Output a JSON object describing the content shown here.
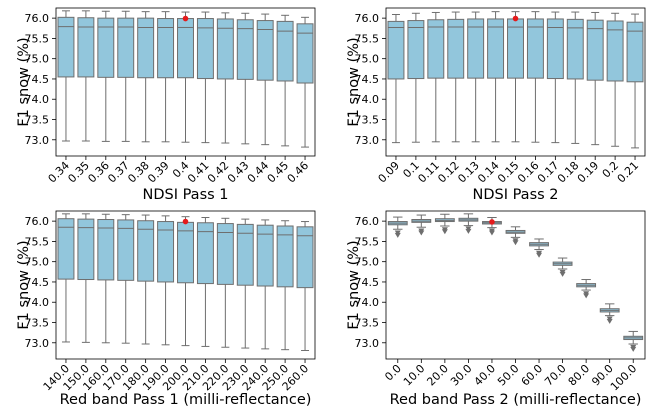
{
  "figure": {
    "background": "#ffffff",
    "box_color": "#92c6dc",
    "edge_color": "#6e6e6e",
    "marker_color": "#e41a1c"
  },
  "chart_data": [
    {
      "type": "box",
      "xlabel": "NDSI Pass 1",
      "ylabel": "F1 snow (%)",
      "ylim": [
        72.6,
        76.25
      ],
      "yticks": [
        "73.0",
        "73.5",
        "74.0",
        "74.5",
        "75.0",
        "75.5",
        "76.0"
      ],
      "categories": [
        "0.34",
        "0.35",
        "0.36",
        "0.37",
        "0.38",
        "0.39",
        "0.4",
        "0.41",
        "0.42",
        "0.43",
        "0.44",
        "0.45",
        "0.46"
      ],
      "series": [
        {
          "boxes": [
            {
              "whislo": 72.97,
              "q1": 74.55,
              "med": 75.79,
              "q3": 76.02,
              "whishi": 76.18
            },
            {
              "whislo": 72.97,
              "q1": 74.55,
              "med": 75.78,
              "q3": 76.01,
              "whishi": 76.18
            },
            {
              "whislo": 72.96,
              "q1": 74.54,
              "med": 75.78,
              "q3": 76.0,
              "whishi": 76.17
            },
            {
              "whislo": 72.96,
              "q1": 74.54,
              "med": 75.78,
              "q3": 76.0,
              "whishi": 76.17
            },
            {
              "whislo": 72.95,
              "q1": 74.53,
              "med": 75.77,
              "q3": 76.0,
              "whishi": 76.16
            },
            {
              "whislo": 72.95,
              "q1": 74.53,
              "med": 75.77,
              "q3": 75.99,
              "whishi": 76.16
            },
            {
              "whislo": 72.94,
              "q1": 74.53,
              "med": 75.77,
              "q3": 75.99,
              "whishi": 76.15
            },
            {
              "whislo": 72.93,
              "q1": 74.51,
              "med": 75.76,
              "q3": 75.99,
              "whishi": 76.15
            },
            {
              "whislo": 72.92,
              "q1": 74.5,
              "med": 75.75,
              "q3": 75.98,
              "whishi": 76.13
            },
            {
              "whislo": 72.9,
              "q1": 74.49,
              "med": 75.74,
              "q3": 75.96,
              "whishi": 76.12
            },
            {
              "whislo": 72.88,
              "q1": 74.47,
              "med": 75.72,
              "q3": 75.94,
              "whishi": 76.1
            },
            {
              "whislo": 72.85,
              "q1": 74.45,
              "med": 75.68,
              "q3": 75.92,
              "whishi": 76.07
            },
            {
              "whislo": 72.82,
              "q1": 74.4,
              "med": 75.63,
              "q3": 75.86,
              "whishi": 76.02
            }
          ]
        }
      ],
      "highlight": {
        "category": "0.4",
        "value": 75.99
      }
    },
    {
      "type": "box",
      "xlabel": "NDSI Pass 2",
      "ylabel": "F1 snow (%)",
      "ylim": [
        72.6,
        76.25
      ],
      "yticks": [
        "73.0",
        "73.5",
        "74.0",
        "74.5",
        "75.0",
        "75.5",
        "76.0"
      ],
      "categories": [
        "0.09",
        "0.1",
        "0.11",
        "0.12",
        "0.13",
        "0.14",
        "0.15",
        "0.16",
        "0.17",
        "0.18",
        "0.19",
        "0.2",
        "0.21"
      ],
      "series": [
        {
          "boxes": [
            {
              "whislo": 72.93,
              "q1": 74.5,
              "med": 75.77,
              "q3": 75.92,
              "whishi": 76.09
            },
            {
              "whislo": 72.94,
              "q1": 74.51,
              "med": 75.77,
              "q3": 75.94,
              "whishi": 76.12
            },
            {
              "whislo": 72.95,
              "q1": 74.52,
              "med": 75.78,
              "q3": 75.96,
              "whishi": 76.14
            },
            {
              "whislo": 72.95,
              "q1": 74.52,
              "med": 75.78,
              "q3": 75.97,
              "whishi": 76.15
            },
            {
              "whislo": 72.95,
              "q1": 74.52,
              "med": 75.78,
              "q3": 75.98,
              "whishi": 76.15
            },
            {
              "whislo": 72.95,
              "q1": 74.52,
              "med": 75.78,
              "q3": 75.98,
              "whishi": 76.16
            },
            {
              "whislo": 72.95,
              "q1": 74.52,
              "med": 75.78,
              "q3": 75.98,
              "whishi": 76.16
            },
            {
              "whislo": 72.94,
              "q1": 74.52,
              "med": 75.78,
              "q3": 75.98,
              "whishi": 76.16
            },
            {
              "whislo": 72.93,
              "q1": 74.51,
              "med": 75.77,
              "q3": 75.98,
              "whishi": 76.15
            },
            {
              "whislo": 72.91,
              "q1": 74.5,
              "med": 75.76,
              "q3": 75.97,
              "whishi": 76.15
            },
            {
              "whislo": 72.88,
              "q1": 74.47,
              "med": 75.74,
              "q3": 75.95,
              "whishi": 76.14
            },
            {
              "whislo": 72.84,
              "q1": 74.45,
              "med": 75.71,
              "q3": 75.93,
              "whishi": 76.12
            },
            {
              "whislo": 72.8,
              "q1": 74.43,
              "med": 75.68,
              "q3": 75.9,
              "whishi": 76.1
            }
          ]
        }
      ],
      "highlight": {
        "category": "0.15",
        "value": 75.99
      }
    },
    {
      "type": "box",
      "xlabel": "Red band Pass 1 (milli-reflectance)",
      "ylabel": "F1 snow (%)",
      "ylim": [
        72.6,
        76.25
      ],
      "yticks": [
        "73.0",
        "73.5",
        "74.0",
        "74.5",
        "75.0",
        "75.5",
        "76.0"
      ],
      "categories": [
        "140.0",
        "150.0",
        "160.0",
        "170.0",
        "180.0",
        "190.0",
        "200.0",
        "210.0",
        "220.0",
        "230.0",
        "240.0",
        "250.0",
        "260.0"
      ],
      "series": [
        {
          "boxes": [
            {
              "whislo": 73.02,
              "q1": 74.57,
              "med": 75.85,
              "q3": 76.06,
              "whishi": 76.18
            },
            {
              "whislo": 73.01,
              "q1": 74.56,
              "med": 75.84,
              "q3": 76.05,
              "whishi": 76.18
            },
            {
              "whislo": 73.0,
              "q1": 74.55,
              "med": 75.83,
              "q3": 76.04,
              "whishi": 76.17
            },
            {
              "whislo": 72.99,
              "q1": 74.54,
              "med": 75.82,
              "q3": 76.03,
              "whishi": 76.16
            },
            {
              "whislo": 72.97,
              "q1": 74.52,
              "med": 75.8,
              "q3": 76.01,
              "whishi": 76.15
            },
            {
              "whislo": 72.95,
              "q1": 74.5,
              "med": 75.78,
              "q3": 75.99,
              "whishi": 76.13
            },
            {
              "whislo": 72.93,
              "q1": 74.48,
              "med": 75.76,
              "q3": 75.97,
              "whishi": 76.11
            },
            {
              "whislo": 72.91,
              "q1": 74.46,
              "med": 75.74,
              "q3": 75.96,
              "whishi": 76.09
            },
            {
              "whislo": 72.89,
              "q1": 74.44,
              "med": 75.72,
              "q3": 75.94,
              "whishi": 76.07
            },
            {
              "whislo": 72.87,
              "q1": 74.42,
              "med": 75.7,
              "q3": 75.92,
              "whishi": 76.05
            },
            {
              "whislo": 72.85,
              "q1": 74.4,
              "med": 75.68,
              "q3": 75.9,
              "whishi": 76.03
            },
            {
              "whislo": 72.83,
              "q1": 74.38,
              "med": 75.66,
              "q3": 75.88,
              "whishi": 76.01
            },
            {
              "whislo": 72.81,
              "q1": 74.36,
              "med": 75.64,
              "q3": 75.86,
              "whishi": 75.99
            }
          ]
        }
      ],
      "highlight": {
        "category": "200.0",
        "value": 75.99
      }
    },
    {
      "type": "box",
      "xlabel": "Red band Pass 2 (milli-reflectance)",
      "ylabel": "F1 snow (%)",
      "ylim": [
        72.6,
        76.25
      ],
      "yticks": [
        "73.0",
        "73.5",
        "74.0",
        "74.5",
        "75.0",
        "75.5",
        "76.0"
      ],
      "categories": [
        "0.0",
        "10.0",
        "20.0",
        "30.0",
        "40.0",
        "50.0",
        "60.0",
        "70.0",
        "80.0",
        "90.0",
        "100.0"
      ],
      "series": [
        {
          "boxes": [
            {
              "whislo": 75.8,
              "q1": 75.91,
              "med": 75.95,
              "q3": 75.99,
              "whishi": 76.1,
              "fliers": [
                75.72,
                75.66
              ]
            },
            {
              "whislo": 75.85,
              "q1": 75.97,
              "med": 76.0,
              "q3": 76.04,
              "whishi": 76.15,
              "fliers": [
                75.77,
                75.72
              ]
            },
            {
              "whislo": 75.88,
              "q1": 75.99,
              "med": 76.02,
              "q3": 76.06,
              "whishi": 76.17,
              "fliers": [
                75.8,
                75.75
              ]
            },
            {
              "whislo": 75.89,
              "q1": 76.0,
              "med": 76.03,
              "q3": 76.07,
              "whishi": 76.18,
              "fliers": [
                75.82,
                75.76
              ]
            },
            {
              "whislo": 75.84,
              "q1": 75.93,
              "med": 75.96,
              "q3": 75.99,
              "whishi": 76.09,
              "fliers": [
                75.77,
                75.72
              ]
            },
            {
              "whislo": 75.6,
              "q1": 75.7,
              "med": 75.73,
              "q3": 75.77,
              "whishi": 75.86,
              "fliers": [
                75.53,
                75.48
              ]
            },
            {
              "whislo": 75.3,
              "q1": 75.39,
              "med": 75.43,
              "q3": 75.47,
              "whishi": 75.56,
              "fliers": [
                75.22,
                75.17
              ]
            },
            {
              "whislo": 74.82,
              "q1": 74.91,
              "med": 74.95,
              "q3": 74.99,
              "whishi": 75.09,
              "fliers": [
                74.75,
                74.7
              ]
            },
            {
              "whislo": 74.3,
              "q1": 74.38,
              "med": 74.42,
              "q3": 74.46,
              "whishi": 74.56,
              "fliers": [
                74.22,
                74.17
              ]
            },
            {
              "whislo": 73.67,
              "q1": 73.76,
              "med": 73.8,
              "q3": 73.84,
              "whishi": 73.96,
              "fliers": [
                73.6,
                73.54
              ]
            },
            {
              "whislo": 72.97,
              "q1": 73.08,
              "med": 73.12,
              "q3": 73.16,
              "whishi": 73.28,
              "fliers": [
                72.9,
                72.85
              ]
            }
          ]
        }
      ],
      "highlight": {
        "category": "40.0",
        "value": 75.98
      }
    }
  ]
}
